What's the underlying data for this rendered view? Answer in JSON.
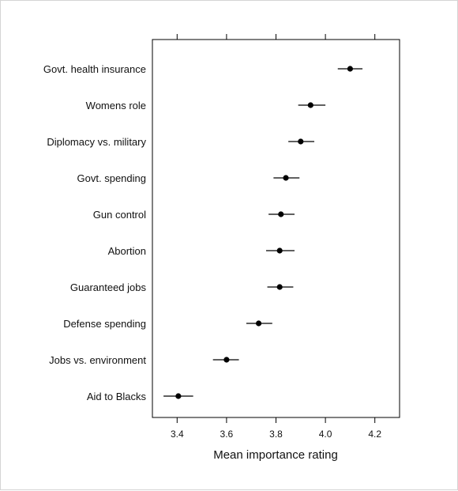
{
  "chart_data": {
    "type": "dot-errorbar",
    "title": "",
    "xlabel": "Mean importance rating",
    "ylabel": "",
    "xlim": [
      3.3,
      4.3
    ],
    "xticks": [
      "3.4",
      "3.6",
      "3.8",
      "4.0",
      "4.2"
    ],
    "grid": false,
    "categories": [
      "Govt. health insurance",
      "Womens role",
      "Diplomacy vs. military",
      "Govt. spending",
      "Gun control",
      "Abortion",
      "Guaranteed jobs",
      "Defense spending",
      "Jobs vs. environment",
      "Aid to Blacks"
    ],
    "values": [
      4.1,
      3.94,
      3.9,
      3.84,
      3.82,
      3.815,
      3.815,
      3.73,
      3.6,
      3.405
    ],
    "lower": [
      4.05,
      3.89,
      3.85,
      3.79,
      3.77,
      3.76,
      3.765,
      3.68,
      3.545,
      3.345
    ],
    "upper": [
      4.15,
      4.0,
      3.955,
      3.895,
      3.875,
      3.875,
      3.87,
      3.785,
      3.65,
      3.465
    ]
  },
  "colors": {
    "mark": "#000000",
    "axis": "#000000",
    "border": "#d4d4d4"
  }
}
